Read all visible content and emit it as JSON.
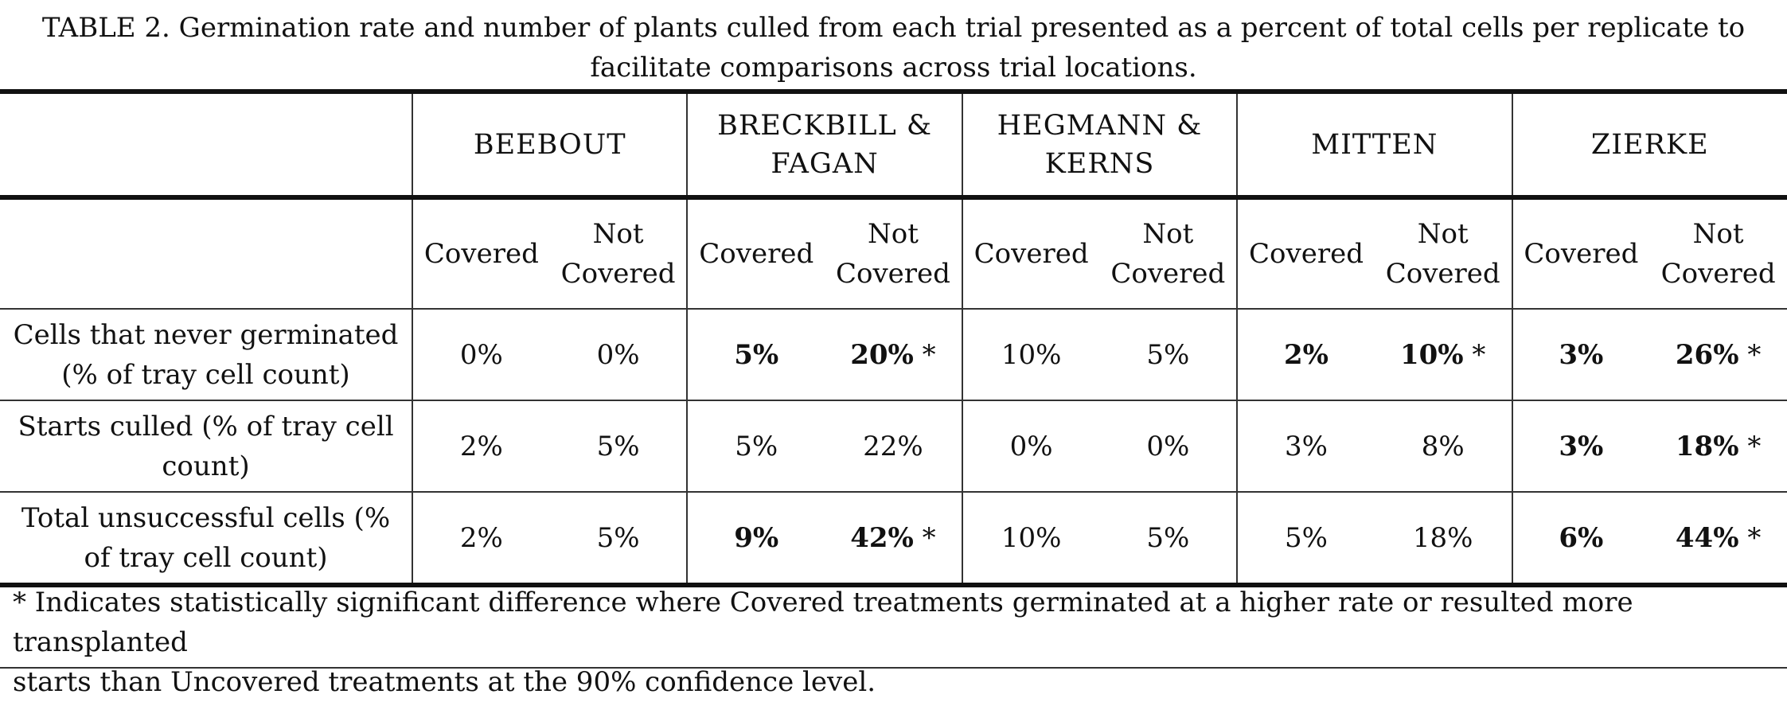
{
  "caption": {
    "line1": "TABLE 2. Germination rate and number   of plants culled from each trial presented as a percent of total cells per replicate to",
    "line2": "facilitate comparisons across trial locations."
  },
  "locations": [
    {
      "lines": [
        "BEEBOUT"
      ]
    },
    {
      "lines": [
        "BRECKBILL &",
        "FAGAN"
      ]
    },
    {
      "lines": [
        "HEGMANN &",
        "KERNS"
      ]
    },
    {
      "lines": [
        "MITTEN"
      ]
    },
    {
      "lines": [
        "ZIERKE"
      ]
    }
  ],
  "subheaders": {
    "covered": "Covered",
    "not_covered_1": "Not",
    "not_covered_2": "Covered"
  },
  "rows": [
    {
      "label1": "Cells that never germinated",
      "label2": "(% of tray cell count)",
      "cells": [
        {
          "v": "0%",
          "bold": false
        },
        {
          "v": "0%",
          "bold": false
        },
        {
          "v": "5%",
          "bold": true
        },
        {
          "v": "20%",
          "bold": true,
          "sig": "*"
        },
        {
          "v": "10%",
          "bold": false
        },
        {
          "v": "5%",
          "bold": false
        },
        {
          "v": "2%",
          "bold": true
        },
        {
          "v": "10%",
          "bold": true,
          "sig": "*"
        },
        {
          "v": "3%",
          "bold": true
        },
        {
          "v": "26%",
          "bold": true,
          "sig": "*"
        }
      ]
    },
    {
      "label1": "Starts culled (% of tray cell",
      "label2": "count)",
      "cells": [
        {
          "v": "2%",
          "bold": false
        },
        {
          "v": "5%",
          "bold": false
        },
        {
          "v": "5%",
          "bold": false
        },
        {
          "v": "22%",
          "bold": false
        },
        {
          "v": "0%",
          "bold": false
        },
        {
          "v": "0%",
          "bold": false
        },
        {
          "v": "3%",
          "bold": false
        },
        {
          "v": "8%",
          "bold": false
        },
        {
          "v": "3%",
          "bold": true
        },
        {
          "v": "18%",
          "bold": true,
          "sig": "*"
        }
      ]
    },
    {
      "label1": "Total unsuccessful cells (%",
      "label2": "of tray cell count)",
      "cells": [
        {
          "v": "2%",
          "bold": false
        },
        {
          "v": "5%",
          "bold": false
        },
        {
          "v": "9%",
          "bold": true
        },
        {
          "v": "42%",
          "bold": true,
          "sig": "*"
        },
        {
          "v": "10%",
          "bold": false
        },
        {
          "v": "5%",
          "bold": false
        },
        {
          "v": "5%",
          "bold": false
        },
        {
          "v": "18%",
          "bold": false
        },
        {
          "v": "6%",
          "bold": true
        },
        {
          "v": "44%",
          "bold": true,
          "sig": "*"
        }
      ]
    }
  ],
  "footnote": {
    "line1": "* Indicates statistically significant difference where Covered treatments germinated at a higher rate or resulted more transplanted",
    "line2": "starts than Uncovered treatments at the 90% confidence level."
  }
}
